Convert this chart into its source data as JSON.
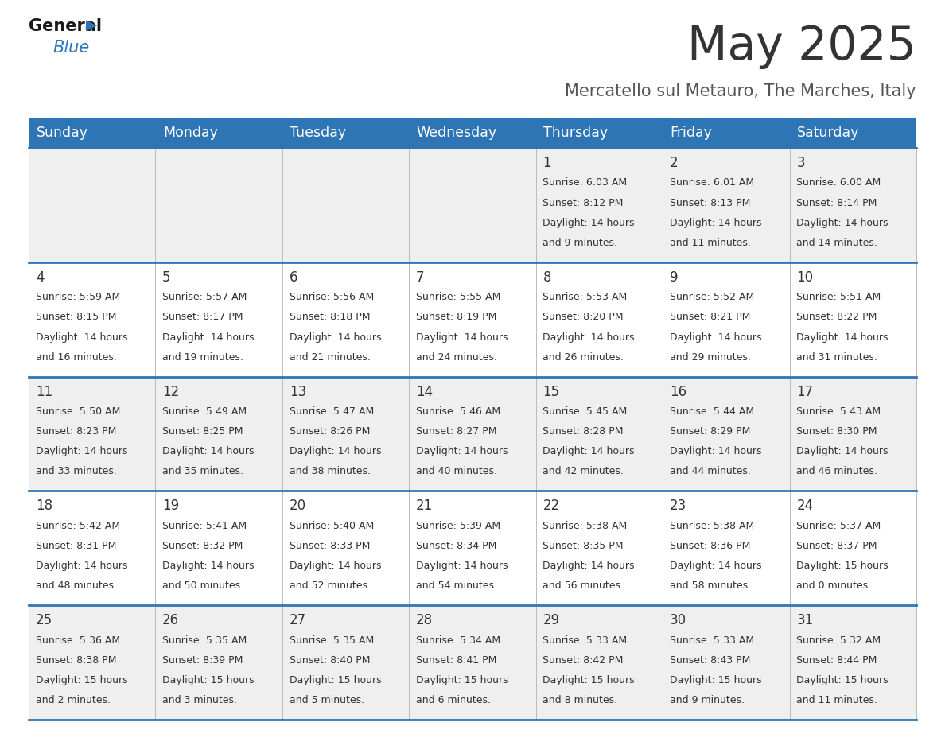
{
  "title": "May 2025",
  "subtitle": "Mercatello sul Metauro, The Marches, Italy",
  "header_bg_color": "#2E75B6",
  "header_text_color": "#FFFFFF",
  "day_names": [
    "Sunday",
    "Monday",
    "Tuesday",
    "Wednesday",
    "Thursday",
    "Friday",
    "Saturday"
  ],
  "row_colors": [
    "#EFEFEF",
    "#FFFFFF",
    "#EFEFEF",
    "#FFFFFF",
    "#EFEFEF"
  ],
  "border_color": "#2E75B6",
  "sep_color": "#BBBBBB",
  "cell_text_color": "#333333",
  "title_color": "#333333",
  "subtitle_color": "#555555",
  "logo_general_color": "#1a1a1a",
  "logo_blue_color": "#2E75B6",
  "calendar": [
    [
      null,
      null,
      null,
      null,
      {
        "day": 1,
        "sunrise": "6:03 AM",
        "sunset": "8:12 PM",
        "daylight_hours": 14,
        "daylight_mins": 9
      },
      {
        "day": 2,
        "sunrise": "6:01 AM",
        "sunset": "8:13 PM",
        "daylight_hours": 14,
        "daylight_mins": 11
      },
      {
        "day": 3,
        "sunrise": "6:00 AM",
        "sunset": "8:14 PM",
        "daylight_hours": 14,
        "daylight_mins": 14
      }
    ],
    [
      {
        "day": 4,
        "sunrise": "5:59 AM",
        "sunset": "8:15 PM",
        "daylight_hours": 14,
        "daylight_mins": 16
      },
      {
        "day": 5,
        "sunrise": "5:57 AM",
        "sunset": "8:17 PM",
        "daylight_hours": 14,
        "daylight_mins": 19
      },
      {
        "day": 6,
        "sunrise": "5:56 AM",
        "sunset": "8:18 PM",
        "daylight_hours": 14,
        "daylight_mins": 21
      },
      {
        "day": 7,
        "sunrise": "5:55 AM",
        "sunset": "8:19 PM",
        "daylight_hours": 14,
        "daylight_mins": 24
      },
      {
        "day": 8,
        "sunrise": "5:53 AM",
        "sunset": "8:20 PM",
        "daylight_hours": 14,
        "daylight_mins": 26
      },
      {
        "day": 9,
        "sunrise": "5:52 AM",
        "sunset": "8:21 PM",
        "daylight_hours": 14,
        "daylight_mins": 29
      },
      {
        "day": 10,
        "sunrise": "5:51 AM",
        "sunset": "8:22 PM",
        "daylight_hours": 14,
        "daylight_mins": 31
      }
    ],
    [
      {
        "day": 11,
        "sunrise": "5:50 AM",
        "sunset": "8:23 PM",
        "daylight_hours": 14,
        "daylight_mins": 33
      },
      {
        "day": 12,
        "sunrise": "5:49 AM",
        "sunset": "8:25 PM",
        "daylight_hours": 14,
        "daylight_mins": 35
      },
      {
        "day": 13,
        "sunrise": "5:47 AM",
        "sunset": "8:26 PM",
        "daylight_hours": 14,
        "daylight_mins": 38
      },
      {
        "day": 14,
        "sunrise": "5:46 AM",
        "sunset": "8:27 PM",
        "daylight_hours": 14,
        "daylight_mins": 40
      },
      {
        "day": 15,
        "sunrise": "5:45 AM",
        "sunset": "8:28 PM",
        "daylight_hours": 14,
        "daylight_mins": 42
      },
      {
        "day": 16,
        "sunrise": "5:44 AM",
        "sunset": "8:29 PM",
        "daylight_hours": 14,
        "daylight_mins": 44
      },
      {
        "day": 17,
        "sunrise": "5:43 AM",
        "sunset": "8:30 PM",
        "daylight_hours": 14,
        "daylight_mins": 46
      }
    ],
    [
      {
        "day": 18,
        "sunrise": "5:42 AM",
        "sunset": "8:31 PM",
        "daylight_hours": 14,
        "daylight_mins": 48
      },
      {
        "day": 19,
        "sunrise": "5:41 AM",
        "sunset": "8:32 PM",
        "daylight_hours": 14,
        "daylight_mins": 50
      },
      {
        "day": 20,
        "sunrise": "5:40 AM",
        "sunset": "8:33 PM",
        "daylight_hours": 14,
        "daylight_mins": 52
      },
      {
        "day": 21,
        "sunrise": "5:39 AM",
        "sunset": "8:34 PM",
        "daylight_hours": 14,
        "daylight_mins": 54
      },
      {
        "day": 22,
        "sunrise": "5:38 AM",
        "sunset": "8:35 PM",
        "daylight_hours": 14,
        "daylight_mins": 56
      },
      {
        "day": 23,
        "sunrise": "5:38 AM",
        "sunset": "8:36 PM",
        "daylight_hours": 14,
        "daylight_mins": 58
      },
      {
        "day": 24,
        "sunrise": "5:37 AM",
        "sunset": "8:37 PM",
        "daylight_hours": 15,
        "daylight_mins": 0
      }
    ],
    [
      {
        "day": 25,
        "sunrise": "5:36 AM",
        "sunset": "8:38 PM",
        "daylight_hours": 15,
        "daylight_mins": 2
      },
      {
        "day": 26,
        "sunrise": "5:35 AM",
        "sunset": "8:39 PM",
        "daylight_hours": 15,
        "daylight_mins": 3
      },
      {
        "day": 27,
        "sunrise": "5:35 AM",
        "sunset": "8:40 PM",
        "daylight_hours": 15,
        "daylight_mins": 5
      },
      {
        "day": 28,
        "sunrise": "5:34 AM",
        "sunset": "8:41 PM",
        "daylight_hours": 15,
        "daylight_mins": 6
      },
      {
        "day": 29,
        "sunrise": "5:33 AM",
        "sunset": "8:42 PM",
        "daylight_hours": 15,
        "daylight_mins": 8
      },
      {
        "day": 30,
        "sunrise": "5:33 AM",
        "sunset": "8:43 PM",
        "daylight_hours": 15,
        "daylight_mins": 9
      },
      {
        "day": 31,
        "sunrise": "5:32 AM",
        "sunset": "8:44 PM",
        "daylight_hours": 15,
        "daylight_mins": 11
      }
    ]
  ]
}
